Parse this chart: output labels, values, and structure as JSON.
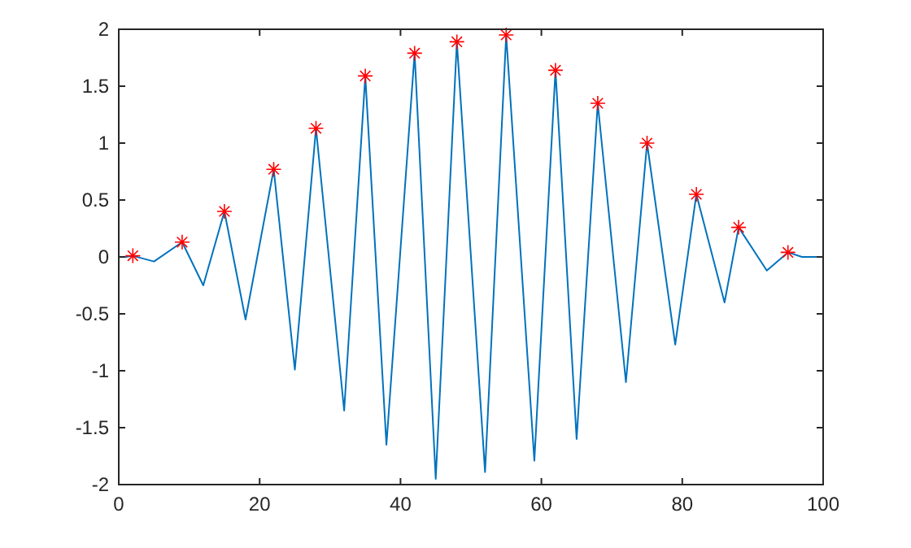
{
  "chart_data": {
    "type": "line",
    "xlim": [
      0,
      100
    ],
    "xticks": [
      0,
      20,
      40,
      60,
      80,
      100
    ],
    "ylim": [
      -2,
      2
    ],
    "yticks": [
      -2,
      -1.5,
      -1,
      -0.5,
      0,
      0.5,
      1,
      1.5,
      2
    ],
    "grid": false,
    "series": [
      {
        "color": "#0072bd",
        "marker": "none",
        "line_style": "solid",
        "x": [
          1,
          2,
          5,
          9,
          12,
          15,
          18,
          22,
          25,
          28,
          32,
          35,
          38,
          42,
          45,
          48,
          52,
          55,
          59,
          62,
          65,
          68,
          72,
          75,
          79,
          82,
          86,
          88,
          92,
          95,
          97,
          100
        ],
        "values": [
          0,
          0.01,
          -0.04,
          0.13,
          -0.25,
          0.4,
          -0.55,
          0.77,
          -0.99,
          1.13,
          -1.35,
          1.59,
          -1.65,
          1.79,
          -1.95,
          1.89,
          -1.89,
          1.95,
          -1.79,
          1.64,
          -1.6,
          1.35,
          -1.1,
          1.0,
          -0.77,
          0.55,
          -0.4,
          0.26,
          -0.12,
          0.04,
          0,
          0
        ]
      },
      {
        "type": "scatter",
        "color": "#ff0000",
        "marker": "cross",
        "x": [
          2,
          9,
          15,
          22,
          28,
          35,
          42,
          48,
          55,
          62,
          68,
          75,
          82,
          88,
          95
        ],
        "values": [
          0.01,
          0.13,
          0.4,
          0.77,
          1.13,
          1.59,
          1.79,
          1.89,
          1.95,
          1.64,
          1.35,
          1.0,
          0.55,
          0.26,
          0.04
        ]
      }
    ]
  }
}
